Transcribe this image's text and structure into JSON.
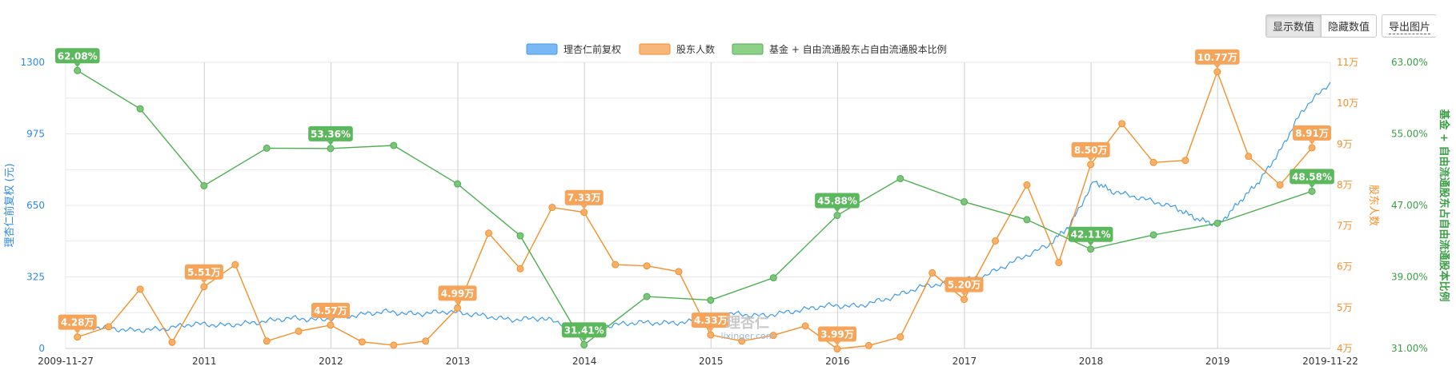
{
  "toolbar": {
    "show_values": "显示数值",
    "hide_values": "隐藏数值",
    "export_image": "导出图片"
  },
  "watermark": {
    "main": "理杏仁",
    "sub": "lixinger.com"
  },
  "chart_data": {
    "type": "line",
    "legend": [
      "理杏仁前复权",
      "股东人数",
      "基金 + 自由流通股东占自由流通股本比例"
    ],
    "colors": {
      "price": "#3d9be9",
      "holders": "#f58f2a",
      "ratio": "#4caf50",
      "price_legend_fill": "#7ab8f5",
      "holders_legend_fill": "#f7b67a",
      "ratio_legend_fill": "#8ed08a"
    },
    "x_range": [
      "2009-11-27",
      "2019-11-22"
    ],
    "x_ticks": [
      "2009-11-27",
      "2011",
      "2012",
      "2013",
      "2014",
      "2015",
      "2016",
      "2017",
      "2018",
      "2019",
      "2019-11-22"
    ],
    "y_left": {
      "label": "理杏仁前复权 (元)",
      "min": 0,
      "max": 1300,
      "ticks": [
        "0",
        "325",
        "650",
        "975",
        "1300"
      ]
    },
    "y_right1": {
      "label": "股东人数",
      "min": 4,
      "max": 11,
      "ticks": [
        "4万",
        "5万",
        "6万",
        "7万",
        "8万",
        "9万",
        "10万",
        "11万"
      ]
    },
    "y_right2": {
      "label": "基金 + 自由流通股东占自由流通股本比例",
      "min": 31,
      "max": 63,
      "ticks": [
        "31.00%",
        "35.00%",
        "39.00%",
        "43.00%",
        "47.00%",
        "51.00%",
        "55.00%",
        "59.00%",
        "63.00%"
      ],
      "tick_labels_shown": [
        "31.00%",
        "39.00%",
        "47.00%",
        "55.00%",
        "63.00%"
      ]
    },
    "series": [
      {
        "name": "理杏仁前复权",
        "axis": "left",
        "points": [
          [
            "2009-11-27",
            100
          ],
          [
            "2010-03-01",
            96
          ],
          [
            "2010-06-01",
            82
          ],
          [
            "2010-09-01",
            88
          ],
          [
            "2010-12-01",
            112
          ],
          [
            "2011-03-01",
            105
          ],
          [
            "2011-06-01",
            118
          ],
          [
            "2011-09-01",
            138
          ],
          [
            "2011-12-01",
            130
          ],
          [
            "2012-03-01",
            148
          ],
          [
            "2012-06-01",
            168
          ],
          [
            "2012-09-01",
            156
          ],
          [
            "2012-12-01",
            168
          ],
          [
            "2013-03-01",
            152
          ],
          [
            "2013-06-01",
            130
          ],
          [
            "2013-09-01",
            138
          ],
          [
            "2013-12-01",
            98
          ],
          [
            "2014-03-01",
            102
          ],
          [
            "2014-06-01",
            118
          ],
          [
            "2014-09-01",
            115
          ],
          [
            "2014-12-01",
            124
          ],
          [
            "2015-03-01",
            158
          ],
          [
            "2015-06-01",
            148
          ],
          [
            "2015-09-01",
            170
          ],
          [
            "2015-12-01",
            195
          ],
          [
            "2016-03-01",
            192
          ],
          [
            "2016-06-01",
            230
          ],
          [
            "2016-09-01",
            282
          ],
          [
            "2016-12-01",
            300
          ],
          [
            "2017-03-01",
            330
          ],
          [
            "2017-06-01",
            402
          ],
          [
            "2017-09-01",
            470
          ],
          [
            "2017-11-01",
            560
          ],
          [
            "2018-01-10",
            760
          ],
          [
            "2018-03-01",
            715
          ],
          [
            "2018-06-01",
            680
          ],
          [
            "2018-09-01",
            640
          ],
          [
            "2018-11-01",
            590
          ],
          [
            "2019-01-03",
            560
          ],
          [
            "2019-03-01",
            660
          ],
          [
            "2019-05-01",
            760
          ],
          [
            "2019-07-01",
            900
          ],
          [
            "2019-09-01",
            1080
          ],
          [
            "2019-11-22",
            1210
          ]
        ]
      },
      {
        "name": "股东人数",
        "axis": "right1",
        "unit": "万",
        "points": [
          [
            "2009-12-31",
            4.28
          ],
          [
            "2010-03-31",
            4.53
          ],
          [
            "2010-06-30",
            5.45
          ],
          [
            "2010-09-30",
            4.15
          ],
          [
            "2010-12-31",
            5.51
          ],
          [
            "2011-03-31",
            6.05
          ],
          [
            "2011-06-30",
            4.18
          ],
          [
            "2011-09-30",
            4.42
          ],
          [
            "2011-12-31",
            4.57
          ],
          [
            "2012-03-31",
            4.16
          ],
          [
            "2012-06-30",
            4.08
          ],
          [
            "2012-09-30",
            4.18
          ],
          [
            "2012-12-31",
            4.99
          ],
          [
            "2013-03-31",
            6.82
          ],
          [
            "2013-06-30",
            5.95
          ],
          [
            "2013-09-30",
            7.45
          ],
          [
            "2013-12-31",
            7.33
          ],
          [
            "2014-03-31",
            6.05
          ],
          [
            "2014-06-30",
            6.02
          ],
          [
            "2014-09-30",
            5.88
          ],
          [
            "2014-12-31",
            4.33
          ],
          [
            "2015-03-31",
            4.18
          ],
          [
            "2015-06-30",
            4.32
          ],
          [
            "2015-09-30",
            4.55
          ],
          [
            "2015-12-31",
            3.99
          ],
          [
            "2016-03-31",
            4.07
          ],
          [
            "2016-06-30",
            4.28
          ],
          [
            "2016-09-30",
            5.85
          ],
          [
            "2016-12-31",
            5.2
          ],
          [
            "2017-03-31",
            6.63
          ],
          [
            "2017-06-30",
            8.0
          ],
          [
            "2017-09-30",
            6.1
          ],
          [
            "2017-12-31",
            8.5
          ],
          [
            "2018-03-31",
            9.5
          ],
          [
            "2018-06-30",
            8.55
          ],
          [
            "2018-09-30",
            8.6
          ],
          [
            "2018-12-31",
            10.77
          ],
          [
            "2019-03-31",
            8.7
          ],
          [
            "2019-06-30",
            8.0
          ],
          [
            "2019-09-30",
            8.91
          ]
        ],
        "labels": [
          {
            "date": "2009-12-31",
            "text": "4.28万",
            "pos": "above"
          },
          {
            "date": "2010-12-31",
            "text": "5.51万",
            "pos": "above"
          },
          {
            "date": "2011-12-31",
            "text": "4.57万",
            "pos": "above"
          },
          {
            "date": "2012-12-31",
            "text": "4.99万",
            "pos": "above"
          },
          {
            "date": "2013-12-31",
            "text": "7.33万",
            "pos": "above"
          },
          {
            "date": "2014-12-31",
            "text": "4.33万",
            "pos": "above"
          },
          {
            "date": "2015-12-31",
            "text": "3.99万",
            "pos": "above"
          },
          {
            "date": "2016-12-31",
            "text": "5.20万",
            "pos": "above"
          },
          {
            "date": "2017-12-31",
            "text": "8.50万",
            "pos": "above"
          },
          {
            "date": "2018-12-31",
            "text": "10.77万",
            "pos": "above"
          },
          {
            "date": "2019-09-30",
            "text": "8.91万",
            "pos": "above"
          }
        ]
      },
      {
        "name": "基金 + 自由流通股东占自由流通股本比例",
        "axis": "right2",
        "unit": "%",
        "points": [
          [
            "2009-12-31",
            62.08
          ],
          [
            "2010-06-30",
            57.8
          ],
          [
            "2010-12-31",
            49.2
          ],
          [
            "2011-06-30",
            53.4
          ],
          [
            "2011-12-31",
            53.36
          ],
          [
            "2012-06-30",
            53.7
          ],
          [
            "2012-12-31",
            49.4
          ],
          [
            "2013-06-30",
            43.6
          ],
          [
            "2013-12-31",
            31.41
          ],
          [
            "2014-06-30",
            36.8
          ],
          [
            "2014-12-31",
            36.4
          ],
          [
            "2015-06-30",
            38.9
          ],
          [
            "2015-12-31",
            45.88
          ],
          [
            "2016-06-30",
            50.0
          ],
          [
            "2016-12-31",
            47.4
          ],
          [
            "2017-06-30",
            45.4
          ],
          [
            "2017-12-31",
            42.11
          ],
          [
            "2018-06-30",
            43.7
          ],
          [
            "2018-12-31",
            45.0
          ],
          [
            "2019-09-30",
            48.58
          ]
        ],
        "labels": [
          {
            "date": "2009-12-31",
            "text": "62.08%",
            "pos": "above"
          },
          {
            "date": "2011-12-31",
            "text": "53.36%",
            "pos": "above"
          },
          {
            "date": "2013-12-31",
            "text": "31.41%",
            "pos": "above"
          },
          {
            "date": "2015-12-31",
            "text": "45.88%",
            "pos": "above"
          },
          {
            "date": "2017-12-31",
            "text": "42.11%",
            "pos": "above"
          },
          {
            "date": "2019-09-30",
            "text": "48.58%",
            "pos": "above"
          }
        ]
      }
    ]
  }
}
